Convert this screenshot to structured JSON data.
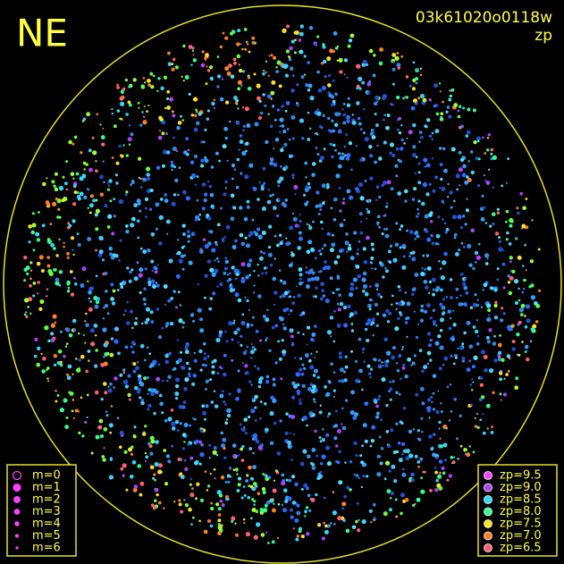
{
  "header": {
    "label": "NE",
    "image_id": "03k61020o0118w",
    "mode": "zp"
  },
  "legend_left": {
    "items": [
      {
        "label": "m=0",
        "color": "#ff40ff"
      },
      {
        "label": "m=1",
        "color": "#ff40ff"
      },
      {
        "label": "m=2",
        "color": "#ff40ff"
      },
      {
        "label": "m=3",
        "color": "#ff40ff"
      },
      {
        "label": "m=4",
        "color": "#ff40ff"
      },
      {
        "label": "m=5",
        "color": "#ff40ff"
      },
      {
        "label": "m=6",
        "color": "#ff40ff"
      }
    ]
  },
  "legend_right": {
    "items": [
      {
        "label": "zp=9.5",
        "color": "#ff40ff"
      },
      {
        "label": "zp=9.0",
        "color": "#b040ff"
      },
      {
        "label": "zp=8.5",
        "color": "#30d8ff"
      },
      {
        "label": "zp=8.0",
        "color": "#30ff90"
      },
      {
        "label": "zp=7.5",
        "color": "#ffe020"
      },
      {
        "label": "zp=7.0",
        "color": "#ff8020"
      },
      {
        "label": "zp=6.5",
        "color": "#ff6070"
      }
    ]
  }
}
